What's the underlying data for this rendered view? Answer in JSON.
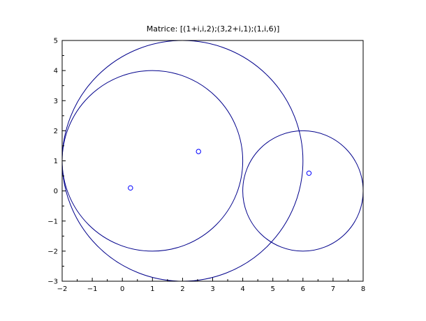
{
  "chart_data": {
    "type": "scatter",
    "title": "Matrice: [(1+i,i,2);(3,2+i,1);(1,i,6)]",
    "xlabel": "",
    "ylabel": "",
    "xlim": [
      -2,
      8
    ],
    "ylim": [
      -3,
      5
    ],
    "grid": false,
    "x_ticks": [
      -2,
      -1,
      0,
      1,
      2,
      3,
      4,
      5,
      6,
      7,
      8
    ],
    "y_ticks": [
      -3,
      -2,
      -1,
      0,
      1,
      2,
      3,
      4,
      5
    ],
    "x_tick_labels": [
      "−2",
      "−1",
      "0",
      "1",
      "2",
      "3",
      "4",
      "5",
      "6",
      "7",
      "8"
    ],
    "y_tick_labels": [
      "−3",
      "−2",
      "−1",
      "0",
      "1",
      "2",
      "3",
      "4",
      "5"
    ],
    "circles": [
      {
        "cx": 1,
        "cy": 1,
        "r": 3
      },
      {
        "cx": 2,
        "cy": 1,
        "r": 4
      },
      {
        "cx": 6,
        "cy": 0,
        "r": 2
      }
    ],
    "points": [
      {
        "x": 0.27,
        "y": 0.1
      },
      {
        "x": 2.53,
        "y": 1.31
      },
      {
        "x": 6.2,
        "y": 0.59
      }
    ],
    "colors": {
      "circle": "#00008b",
      "marker": "#0000ff",
      "axis": "#000000"
    }
  }
}
